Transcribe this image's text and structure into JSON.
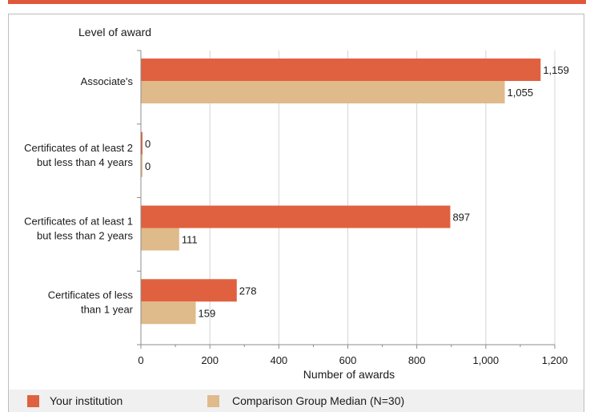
{
  "chart_data": {
    "type": "bar",
    "orientation": "horizontal",
    "title": "",
    "ylabel": "Level of award",
    "xlabel": "Number of awards",
    "xlim": [
      0,
      1200
    ],
    "xticks": [
      0,
      200,
      400,
      600,
      800,
      1000,
      1200
    ],
    "xtick_labels": [
      "0",
      "200",
      "400",
      "600",
      "800",
      "1,000",
      "1,200"
    ],
    "grid": "vertical",
    "legend_position": "bottom",
    "categories": [
      "Associate's",
      "Certificates of at least 2 but less than 4 years",
      "Certificates of at least 1 but  less than 2 years",
      "Certificates of less than 1 year"
    ],
    "category_lines": [
      [
        "Associate's"
      ],
      [
        "Certificates of at least 2",
        "but less than 4 years"
      ],
      [
        "Certificates of at least 1",
        "but  less than 2 years"
      ],
      [
        "Certificates of less",
        "than 1 year"
      ]
    ],
    "series": [
      {
        "name": "Your institution",
        "color": "#e0613f",
        "values": [
          1159,
          0,
          897,
          278
        ],
        "labels": [
          "1,159",
          "0",
          "897",
          "278"
        ]
      },
      {
        "name": "Comparison Group Median (N=30)",
        "color": "#dfba8a",
        "values": [
          1055,
          0,
          111,
          159
        ],
        "labels": [
          "1,055",
          "0",
          "111",
          "159"
        ]
      }
    ]
  },
  "colors": {
    "accent": "#e0583a",
    "grid": "#d4d4d4",
    "axis": "#8c8c8c"
  }
}
